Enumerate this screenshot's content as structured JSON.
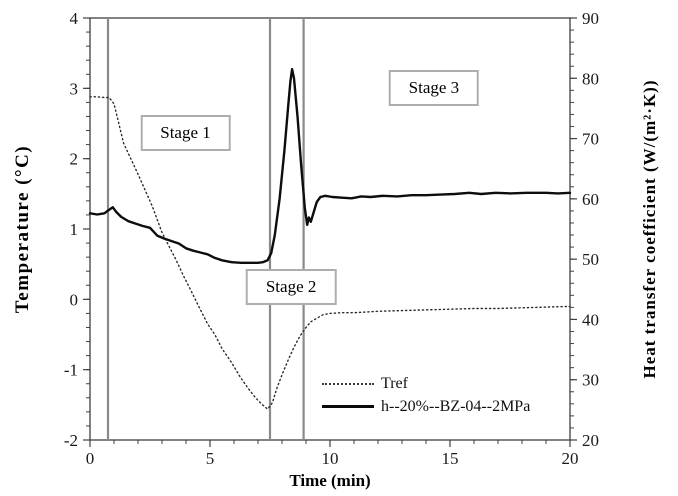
{
  "figure": {
    "background": "#ffffff",
    "frame_color": "#3f3f3f",
    "stage_line_color": "#8a8a8a",
    "annotation_border_color": "#aeaeae"
  },
  "chart_data": {
    "type": "line",
    "title": "",
    "xlabel": "Time (min)",
    "ylabel_left": "Temperature (°C)",
    "ylabel_right": "Heat transfer coefficient (W/(m²·K))",
    "grid": false,
    "x_axis": {
      "range": [
        0,
        20
      ],
      "major_ticks": [
        0,
        5,
        10,
        15,
        20
      ],
      "minor_step": 1
    },
    "y_left_axis": {
      "range": [
        -2,
        4
      ],
      "major_ticks": [
        -2,
        -1,
        0,
        1,
        2,
        3,
        4
      ],
      "minor_step": 0.2
    },
    "y_right_axis": {
      "range": [
        20,
        90
      ],
      "major_ticks": [
        20,
        30,
        40,
        50,
        60,
        70,
        80,
        90
      ],
      "minor_step": 2
    },
    "stage_boundary_lines_x": [
      0.75,
      7.5,
      8.9
    ],
    "annotations": [
      {
        "label": "Stage 1",
        "x": 3.98,
        "y_left": 2.37
      },
      {
        "label": "Stage 2",
        "x": 8.38,
        "y_left": 0.17
      },
      {
        "label": "Stage 3",
        "x": 14.33,
        "y_left": 3.01
      }
    ],
    "legend": {
      "position": "inside-bottom-right",
      "items": [
        {
          "label": "Tref",
          "style": "dotted"
        },
        {
          "label": "h--20%--BZ-04--2MPa",
          "style": "solid"
        }
      ]
    },
    "series": [
      {
        "name": "Tref",
        "axis": "left",
        "style": "dotted",
        "color": "#2b2b2b",
        "width": 1.4,
        "points": [
          [
            0,
            2.88
          ],
          [
            0.3,
            2.88
          ],
          [
            0.6,
            2.87
          ],
          [
            0.8,
            2.87
          ],
          [
            1.0,
            2.78
          ],
          [
            1.2,
            2.5
          ],
          [
            1.4,
            2.22
          ],
          [
            1.7,
            2.0
          ],
          [
            2.0,
            1.78
          ],
          [
            2.3,
            1.55
          ],
          [
            2.6,
            1.32
          ],
          [
            3.0,
            0.95
          ],
          [
            3.3,
            0.75
          ],
          [
            3.6,
            0.55
          ],
          [
            3.9,
            0.33
          ],
          [
            4.2,
            0.13
          ],
          [
            4.5,
            -0.08
          ],
          [
            4.9,
            -0.35
          ],
          [
            5.2,
            -0.5
          ],
          [
            5.5,
            -0.7
          ],
          [
            5.9,
            -0.9
          ],
          [
            6.25,
            -1.1
          ],
          [
            6.6,
            -1.27
          ],
          [
            6.9,
            -1.4
          ],
          [
            7.15,
            -1.49
          ],
          [
            7.4,
            -1.56
          ],
          [
            7.6,
            -1.47
          ],
          [
            7.8,
            -1.25
          ],
          [
            8.05,
            -1.03
          ],
          [
            8.3,
            -0.83
          ],
          [
            8.5,
            -0.68
          ],
          [
            8.75,
            -0.52
          ],
          [
            9.0,
            -0.4
          ],
          [
            9.2,
            -0.32
          ],
          [
            9.45,
            -0.27
          ],
          [
            9.7,
            -0.22
          ],
          [
            10.0,
            -0.2
          ],
          [
            10.5,
            -0.19
          ],
          [
            11,
            -0.19
          ],
          [
            12,
            -0.17
          ],
          [
            13,
            -0.16
          ],
          [
            14,
            -0.15
          ],
          [
            15,
            -0.14
          ],
          [
            16,
            -0.13
          ],
          [
            17,
            -0.13
          ],
          [
            18,
            -0.12
          ],
          [
            19,
            -0.11
          ],
          [
            20,
            -0.1
          ]
        ]
      },
      {
        "name": "h--20%--BZ-04--2MPa",
        "axis": "right",
        "style": "solid",
        "color": "#0d0d0d",
        "width": 2.4,
        "points": [
          [
            0,
            57.6
          ],
          [
            0.3,
            57.4
          ],
          [
            0.6,
            57.6
          ],
          [
            0.8,
            58.2
          ],
          [
            0.95,
            58.6
          ],
          [
            1.1,
            57.8
          ],
          [
            1.3,
            57.0
          ],
          [
            1.6,
            56.3
          ],
          [
            1.9,
            55.9
          ],
          [
            2.2,
            55.5
          ],
          [
            2.5,
            55.2
          ],
          [
            2.8,
            53.9
          ],
          [
            3.1,
            53.4
          ],
          [
            3.4,
            53.0
          ],
          [
            3.7,
            52.6
          ],
          [
            4.0,
            51.8
          ],
          [
            4.3,
            51.4
          ],
          [
            4.6,
            51.1
          ],
          [
            4.9,
            50.8
          ],
          [
            5.2,
            50.2
          ],
          [
            5.5,
            49.8
          ],
          [
            5.9,
            49.5
          ],
          [
            6.3,
            49.4
          ],
          [
            6.7,
            49.4
          ],
          [
            7.0,
            49.4
          ],
          [
            7.2,
            49.5
          ],
          [
            7.4,
            49.8
          ],
          [
            7.55,
            51.0
          ],
          [
            7.7,
            54.0
          ],
          [
            7.9,
            60.0
          ],
          [
            8.1,
            68.0
          ],
          [
            8.25,
            75.0
          ],
          [
            8.35,
            79.5
          ],
          [
            8.42,
            81.5
          ],
          [
            8.5,
            80.0
          ],
          [
            8.65,
            73.5
          ],
          [
            8.8,
            65.5
          ],
          [
            8.95,
            58.5
          ],
          [
            9.05,
            55.7
          ],
          [
            9.12,
            56.9
          ],
          [
            9.2,
            56.2
          ],
          [
            9.3,
            57.5
          ],
          [
            9.45,
            59.5
          ],
          [
            9.6,
            60.3
          ],
          [
            9.8,
            60.5
          ],
          [
            10.1,
            60.3
          ],
          [
            10.5,
            60.2
          ],
          [
            10.9,
            60.1
          ],
          [
            11.3,
            60.4
          ],
          [
            11.7,
            60.3
          ],
          [
            12.2,
            60.5
          ],
          [
            12.8,
            60.4
          ],
          [
            13.4,
            60.6
          ],
          [
            14.0,
            60.6
          ],
          [
            14.6,
            60.7
          ],
          [
            15.2,
            60.8
          ],
          [
            15.8,
            61.0
          ],
          [
            16.3,
            60.8
          ],
          [
            16.9,
            61.0
          ],
          [
            17.5,
            60.9
          ],
          [
            18.2,
            61.0
          ],
          [
            19.0,
            61.0
          ],
          [
            19.5,
            60.9
          ],
          [
            20,
            61.0
          ]
        ]
      }
    ]
  }
}
